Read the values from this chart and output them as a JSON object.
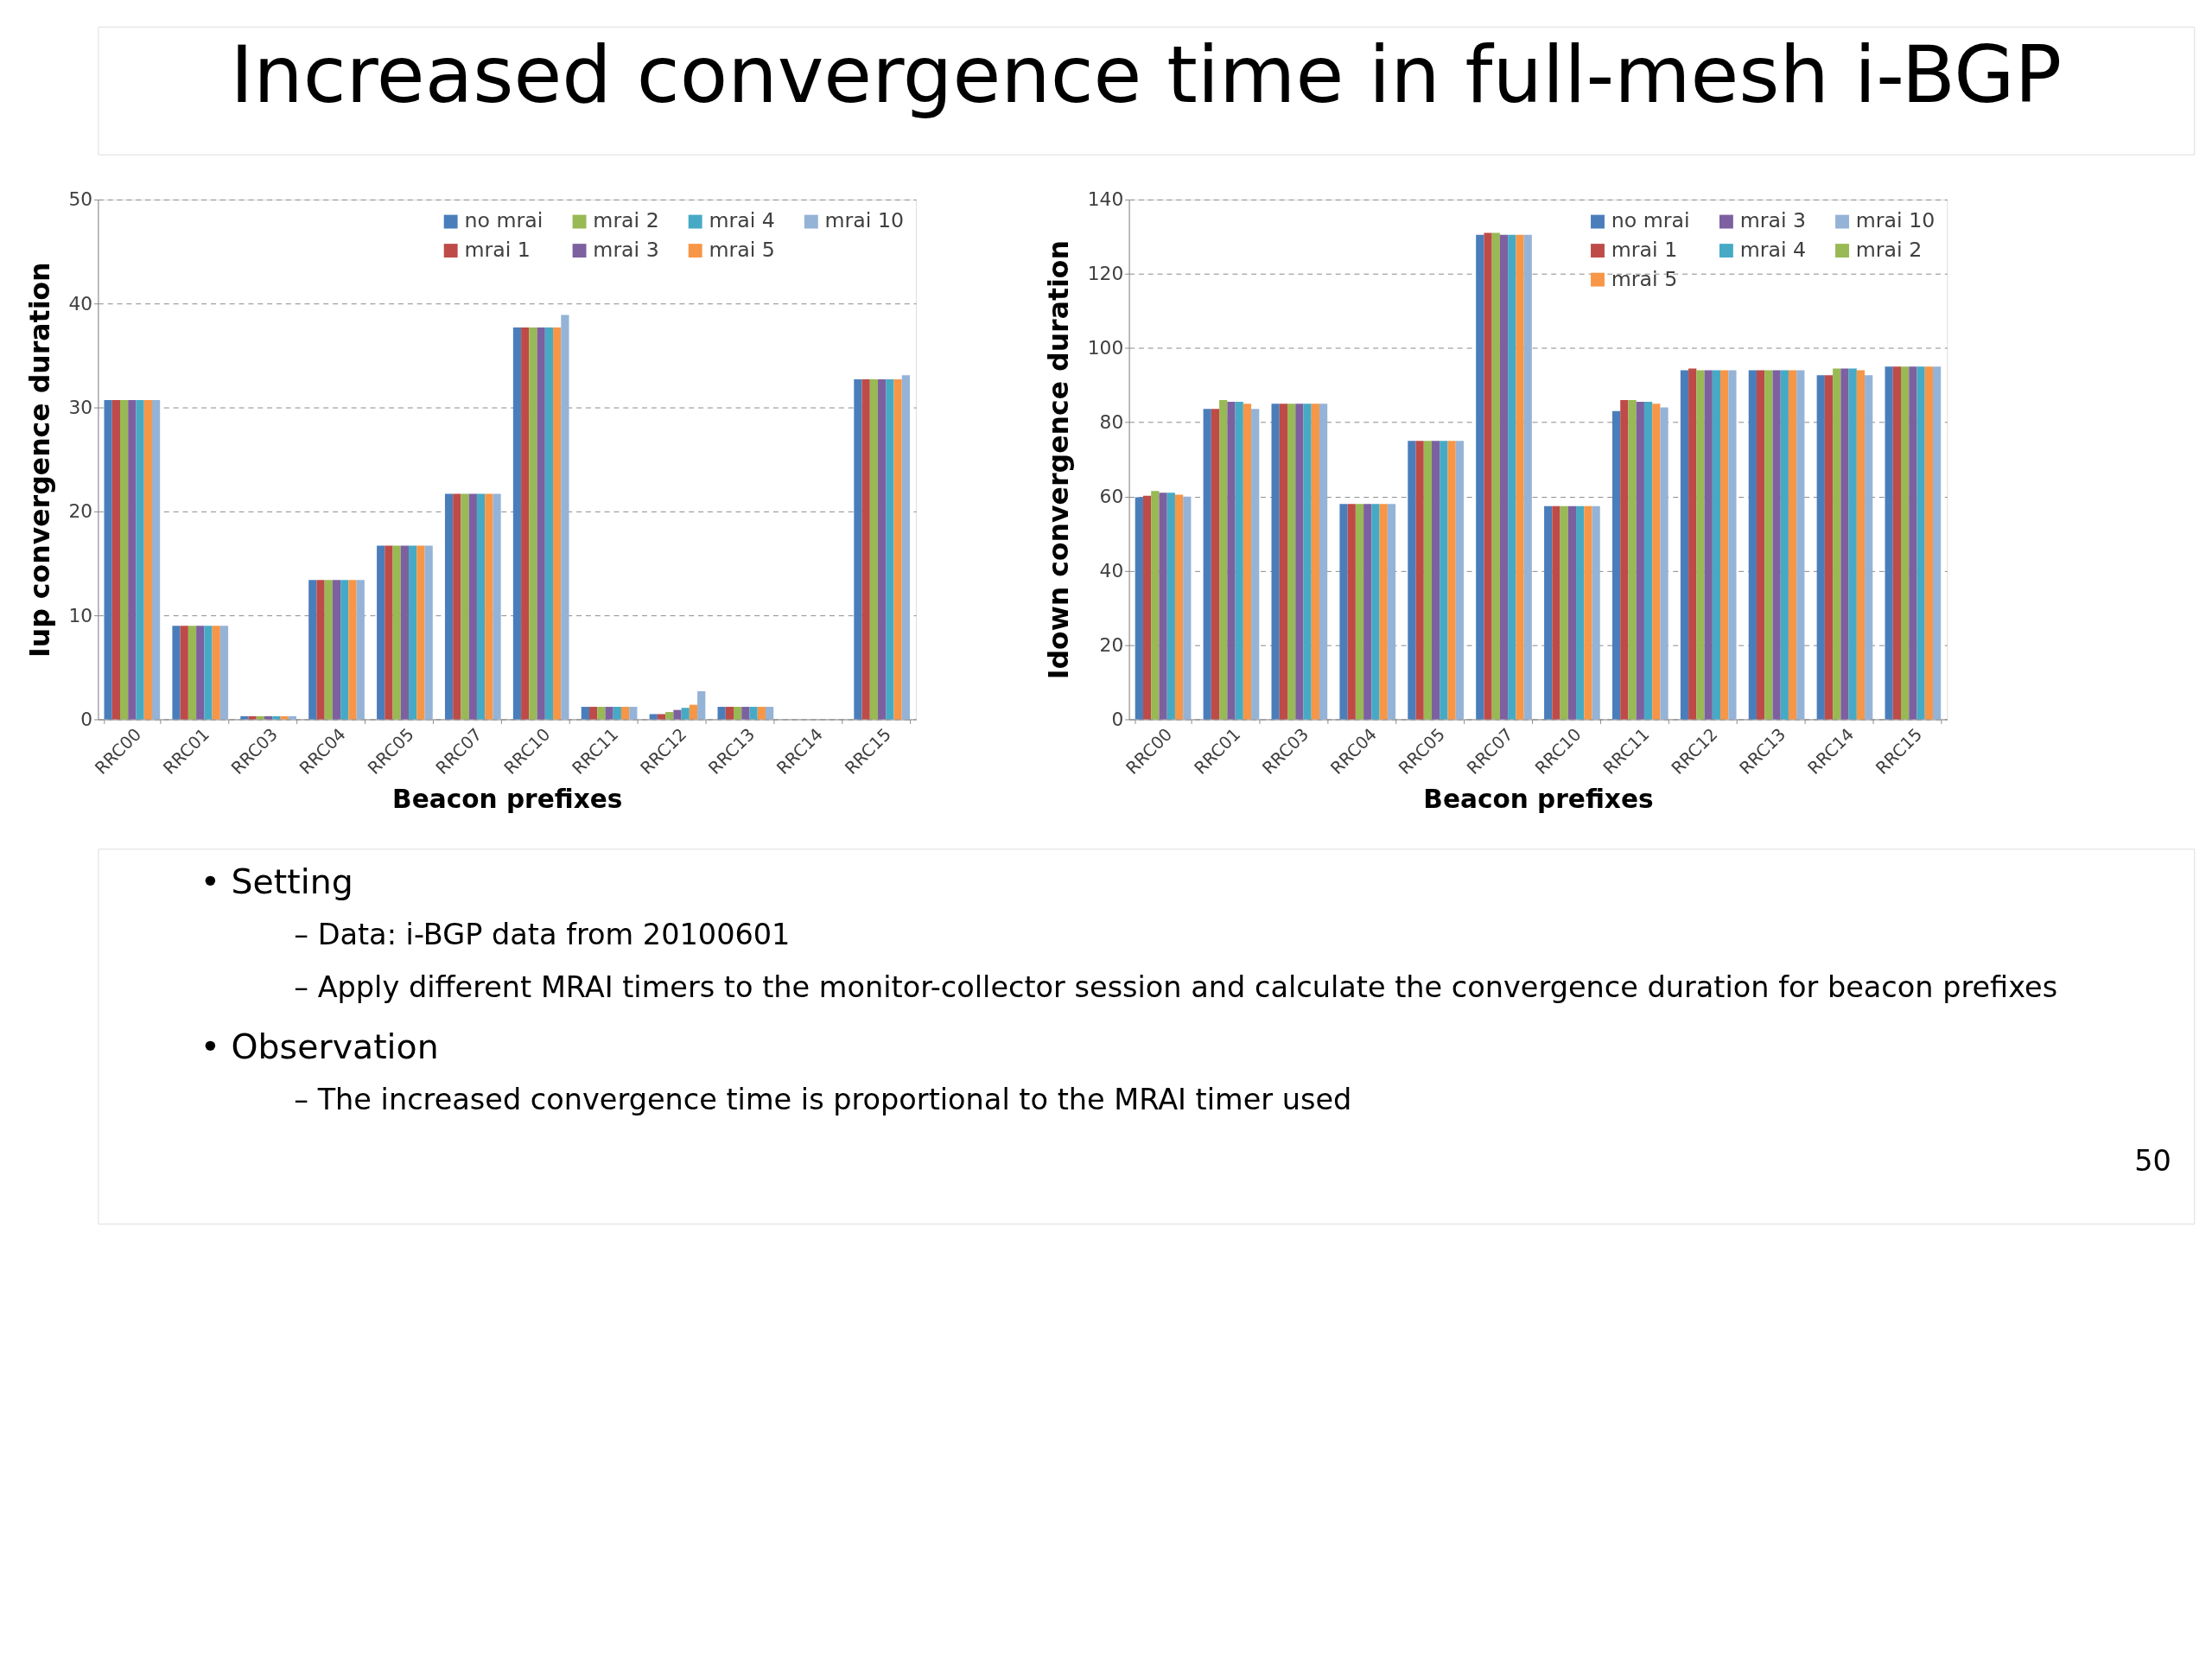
{
  "chart_data": [
    {
      "type": "bar",
      "title": "Increased convergence time in full-mesh i-BGP",
      "xlabel": "Beacon prefixes",
      "ylabel": "Iup convergence duration",
      "categories": [
        "RRC00",
        "RRC01",
        "RRC03",
        "RRC04",
        "RRC05",
        "RRC07",
        "RRC10",
        "RRC11",
        "RRC12",
        "RRC13",
        "RRC14",
        "RRC15"
      ],
      "ylim": [
        0,
        50
      ],
      "yticks": [
        0,
        10,
        20,
        30,
        40,
        50
      ],
      "grid": "y",
      "legend": "top right",
      "series": [
        {
          "name": "no mrai",
          "color": "#4a7ebb",
          "values": [
            30.7,
            9,
            0.3,
            13.4,
            16.7,
            21.7,
            37.7,
            1.2,
            0.5,
            1.2,
            0,
            32.7
          ]
        },
        {
          "name": "mrai 1",
          "color": "#be4b48",
          "values": [
            30.7,
            9,
            0.3,
            13.4,
            16.7,
            21.7,
            37.7,
            1.2,
            0.5,
            1.2,
            0,
            32.7
          ]
        },
        {
          "name": "mrai 2",
          "color": "#98b954",
          "values": [
            30.7,
            9,
            0.3,
            13.4,
            16.7,
            21.7,
            37.7,
            1.2,
            0.7,
            1.2,
            0,
            32.7
          ]
        },
        {
          "name": "mrai 3",
          "color": "#7d60a0",
          "values": [
            30.7,
            9,
            0.3,
            13.4,
            16.7,
            21.7,
            37.7,
            1.2,
            0.9,
            1.2,
            0,
            32.7
          ]
        },
        {
          "name": "mrai 4",
          "color": "#46aac5",
          "values": [
            30.7,
            9,
            0.3,
            13.4,
            16.7,
            21.7,
            37.7,
            1.2,
            1.1,
            1.2,
            0,
            32.7
          ]
        },
        {
          "name": "mrai 5",
          "color": "#f79646",
          "values": [
            30.7,
            9,
            0.3,
            13.4,
            16.7,
            21.7,
            37.7,
            1.2,
            1.4,
            1.2,
            0,
            32.7
          ]
        },
        {
          "name": "mrai 10",
          "color": "#95b3d7",
          "values": [
            30.7,
            9,
            0.3,
            13.4,
            16.7,
            21.7,
            38.9,
            1.2,
            2.7,
            1.2,
            0,
            33.1
          ]
        }
      ]
    },
    {
      "type": "bar",
      "xlabel": "Beacon prefixes",
      "ylabel": "Idown convergence duration",
      "categories": [
        "RRC00",
        "RRC01",
        "RRC03",
        "RRC04",
        "RRC05",
        "RRC07",
        "RRC10",
        "RRC11",
        "RRC12",
        "RRC13",
        "RRC14",
        "RRC15"
      ],
      "ylim": [
        0,
        140
      ],
      "yticks": [
        0,
        20,
        40,
        60,
        80,
        100,
        120,
        140
      ],
      "grid": "y",
      "legend": "top right",
      "series": [
        {
          "name": "no mrai",
          "color": "#4a7ebb",
          "values": [
            59.8,
            83.6,
            85,
            58,
            75,
            130.5,
            57.4,
            83,
            94,
            94,
            92.7,
            95
          ]
        },
        {
          "name": "mrai 1",
          "color": "#be4b48",
          "values": [
            60.2,
            83.6,
            85,
            58,
            75,
            131,
            57.4,
            86,
            94.5,
            94,
            92.7,
            95
          ]
        },
        {
          "name": "mrai 2",
          "color": "#98b954",
          "values": [
            61.5,
            86,
            85,
            58,
            75,
            131,
            57.4,
            86,
            94,
            94,
            94.5,
            95
          ]
        },
        {
          "name": "mrai 3",
          "color": "#7d60a0",
          "values": [
            61,
            85.5,
            85,
            58,
            75,
            130.5,
            57.4,
            85.5,
            94,
            94,
            94.5,
            95
          ]
        },
        {
          "name": "mrai 4",
          "color": "#46aac5",
          "values": [
            61,
            85.5,
            85,
            58,
            75,
            130.5,
            57.4,
            85.5,
            94,
            94,
            94.5,
            95
          ]
        },
        {
          "name": "mrai 5",
          "color": "#f79646",
          "values": [
            60.5,
            85,
            85,
            58,
            75,
            130.5,
            57.4,
            85,
            94,
            94,
            94,
            95
          ]
        },
        {
          "name": "mrai 10",
          "color": "#95b3d7",
          "values": [
            60,
            83.6,
            85,
            58,
            75,
            130.5,
            57.4,
            84,
            94,
            94,
            92.7,
            95
          ]
        }
      ],
      "annotations": [
        "•   Setting",
        "–   Data: i-BGP data from 20100601",
        "–   Apply different MRAI timers to the monitor-collector session and calculate the convergence duration for beacon prefixes",
        "•   Observation",
        "–   The increased convergence time is proportional to the MRAI timer used",
        "50"
      ]
    }
  ]
}
